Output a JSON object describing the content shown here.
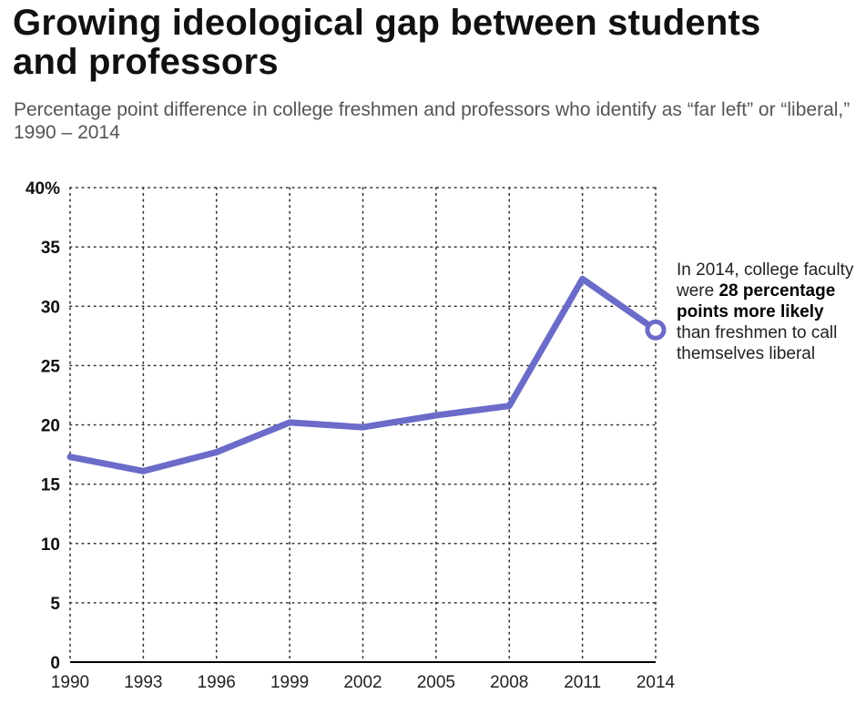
{
  "title": "Growing ideological gap between students and professors",
  "subtitle": "Percentage point difference in college freshmen and professors who identify as “far left” or “liberal,” 1990 – 2014",
  "annotation": {
    "text_before": "In 2014, college faculty were ",
    "text_bold": "28 percentage points more likely",
    "text_after": " than freshmen to call themselves liberal"
  },
  "colors": {
    "line": "#6b6bc9",
    "grid": "#333333"
  },
  "chart_data": {
    "type": "line",
    "title": "Growing ideological gap between students and professors",
    "xlabel": "",
    "ylabel": "",
    "x": [
      1990,
      1993,
      1996,
      1999,
      2002,
      2005,
      2008,
      2011,
      2014
    ],
    "values": [
      17.3,
      16.1,
      17.7,
      20.2,
      19.8,
      20.8,
      21.6,
      32.3,
      28
    ],
    "xlim": [
      1990,
      2014
    ],
    "ylim": [
      0,
      40
    ],
    "x_ticks": [
      "1990",
      "1993",
      "1996",
      "1999",
      "2002",
      "2005",
      "2008",
      "2011",
      "2014"
    ],
    "y_ticks": [
      "0",
      "5",
      "10",
      "15",
      "20",
      "25",
      "30",
      "35",
      "40%"
    ],
    "grid": "dotted",
    "endpoint_marker": "open-circle"
  }
}
